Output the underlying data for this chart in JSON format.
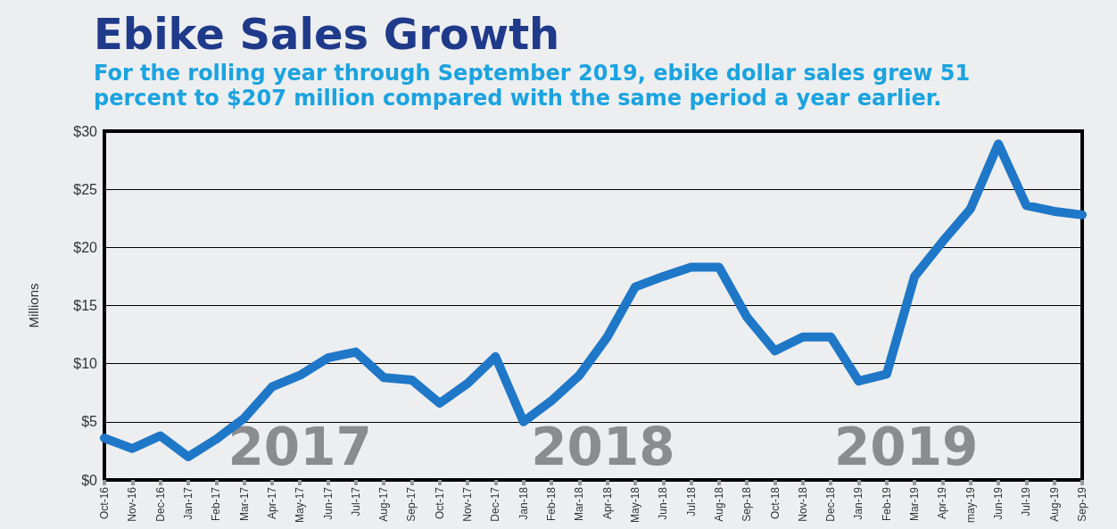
{
  "chart_data": {
    "type": "line",
    "title": "Ebike Sales Growth",
    "subtitle": "For the rolling year through September 2019, ebike dollar sales grew 51\npercent to $207 million compared with the same period a year earlier.",
    "ylabel": "Millions",
    "categories": [
      "Oct-16",
      "Nov-16",
      "Dec-16",
      "Jan-17",
      "Feb-17",
      "Mar-17",
      "Apr-17",
      "May-17",
      "Jun-17",
      "Jul-17",
      "Aug-17",
      "Sep-17",
      "Oct-17",
      "Nov-17",
      "Dec-17",
      "Jan-18",
      "Feb-18",
      "Mar-18",
      "Apr-18",
      "May-18",
      "Jun-18",
      "Jul-18",
      "Aug-18",
      "Sep-18",
      "Oct-18",
      "Nov-18",
      "Dec-18",
      "Jan-19",
      "Feb-19",
      "Mar-19",
      "Apr-19",
      "may-19",
      "Jun-19",
      "Jul-19",
      "Aug-19",
      "Sep-19"
    ],
    "series": [
      {
        "color": "#1f77c8",
        "values": [
          3.6,
          2.7,
          3.8,
          2.0,
          3.5,
          5.3,
          8.0,
          9.0,
          10.5,
          11.0,
          8.8,
          8.6,
          6.6,
          8.3,
          10.6,
          5.0,
          6.8,
          9.0,
          12.3,
          16.6,
          17.5,
          18.3,
          18.3,
          14.0,
          11.1,
          12.3,
          12.3,
          8.5,
          9.1,
          17.5,
          20.5,
          23.3,
          28.9,
          23.6,
          23.1,
          22.8
        ]
      }
    ],
    "ylim": [
      0,
      30
    ],
    "yticks": [
      {
        "value": 0,
        "label": "$0"
      },
      {
        "value": 5,
        "label": "$5"
      },
      {
        "value": 10,
        "label": "$10"
      },
      {
        "value": 15,
        "label": "$15"
      },
      {
        "value": 20,
        "label": "$20"
      },
      {
        "value": 25,
        "label": "$25"
      },
      {
        "value": 30,
        "label": "$30"
      }
    ],
    "annotations": [
      "2017",
      "2018",
      "2019"
    ],
    "grid": "y",
    "line_style": "solid"
  }
}
